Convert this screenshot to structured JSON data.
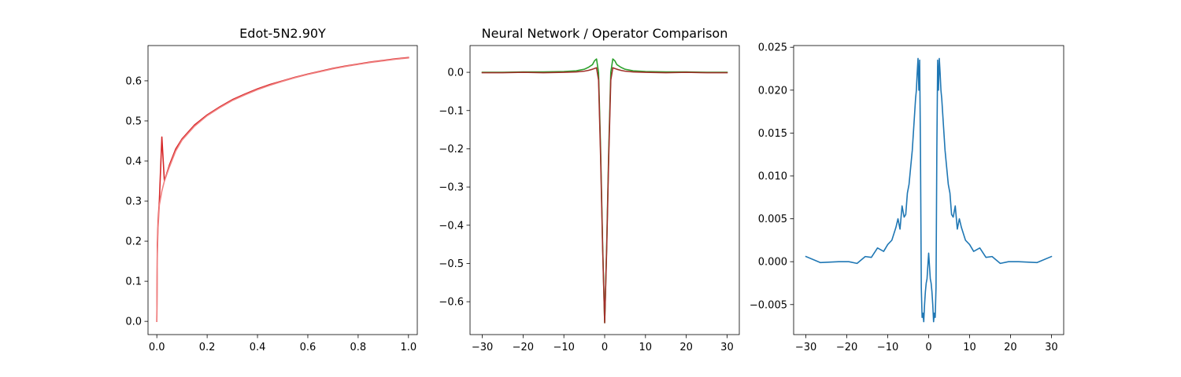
{
  "chart_data": [
    {
      "type": "line",
      "title": "Edot-5N2.90Y",
      "xlabel": "",
      "ylabel": "",
      "xlim": [
        -0.035,
        1.035
      ],
      "ylim": [
        -0.033,
        0.688
      ],
      "xticks": [
        0.0,
        0.2,
        0.4,
        0.6,
        0.8,
        1.0
      ],
      "xtick_labels": [
        "0.0",
        "0.2",
        "0.4",
        "0.6",
        "0.8",
        "1.0"
      ],
      "yticks": [
        0.0,
        0.1,
        0.2,
        0.3,
        0.4,
        0.5,
        0.6
      ],
      "ytick_labels": [
        "0.0",
        "0.1",
        "0.2",
        "0.3",
        "0.4",
        "0.5",
        "0.6"
      ],
      "grid": false,
      "series": [
        {
          "color": "#d62728",
          "x": [
            0.0,
            0.002,
            0.005,
            0.01,
            0.015,
            0.02,
            0.03,
            0.05,
            0.075,
            0.1,
            0.15,
            0.2,
            0.25,
            0.3,
            0.35,
            0.4,
            0.45,
            0.5,
            0.55,
            0.6,
            0.65,
            0.7,
            0.75,
            0.8,
            0.85,
            0.9,
            0.95,
            1.0
          ],
          "y": [
            0.0,
            0.19,
            0.25,
            0.3,
            0.38,
            0.46,
            0.35,
            0.39,
            0.43,
            0.455,
            0.49,
            0.515,
            0.535,
            0.553,
            0.567,
            0.58,
            0.591,
            0.6,
            0.609,
            0.617,
            0.624,
            0.631,
            0.637,
            0.642,
            0.647,
            0.651,
            0.655,
            0.658
          ]
        },
        {
          "color": "#f08080",
          "x": [
            0.0,
            0.002,
            0.005,
            0.01,
            0.02,
            0.03,
            0.05,
            0.075,
            0.1,
            0.15,
            0.2,
            0.25,
            0.3,
            0.35,
            0.4,
            0.45,
            0.5,
            0.55,
            0.6,
            0.65,
            0.7,
            0.75,
            0.8,
            0.85,
            0.9,
            0.95,
            1.0
          ],
          "y": [
            0.0,
            0.17,
            0.235,
            0.29,
            0.325,
            0.35,
            0.385,
            0.425,
            0.452,
            0.487,
            0.513,
            0.533,
            0.551,
            0.565,
            0.578,
            0.589,
            0.599,
            0.608,
            0.616,
            0.623,
            0.63,
            0.636,
            0.641,
            0.646,
            0.65,
            0.654,
            0.657
          ]
        }
      ]
    },
    {
      "type": "line",
      "title": "Neural Network / Operator Comparison",
      "xlabel": "",
      "ylabel": "",
      "xlim": [
        -33,
        33
      ],
      "ylim": [
        -0.686,
        0.07
      ],
      "xticks": [
        -30,
        -20,
        -10,
        0,
        10,
        20,
        30
      ],
      "xtick_labels": [
        "−30",
        "−20",
        "−10",
        "0",
        "10",
        "20",
        "30"
      ],
      "yticks": [
        0.0,
        -0.1,
        -0.2,
        -0.3,
        -0.4,
        -0.5,
        -0.6
      ],
      "ytick_labels": [
        "0.0",
        "−0.1",
        "−0.2",
        "−0.3",
        "−0.4",
        "−0.5",
        "−0.6"
      ],
      "grid": false,
      "series": [
        {
          "color": "#2ca02c",
          "x": [
            -30,
            -25,
            -20,
            -15,
            -10,
            -7,
            -5,
            -4,
            -3,
            -2.5,
            -2,
            -1.5,
            -1,
            -0.5,
            0,
            0.5,
            1,
            1.5,
            2,
            2.5,
            3,
            4,
            5,
            7,
            10,
            15,
            20,
            25,
            30
          ],
          "y": [
            0.0,
            0.0,
            0.001,
            0.001,
            0.002,
            0.004,
            0.008,
            0.013,
            0.02,
            0.03,
            0.035,
            0.0,
            -0.2,
            -0.45,
            -0.655,
            -0.45,
            -0.2,
            0.0,
            0.035,
            0.03,
            0.02,
            0.013,
            0.008,
            0.004,
            0.002,
            0.001,
            0.001,
            0.0,
            0.0
          ]
        },
        {
          "color": "#a0302a",
          "x": [
            -30,
            -25,
            -20,
            -15,
            -10,
            -7,
            -5,
            -4,
            -3,
            -2.5,
            -2,
            -1.5,
            -1,
            -0.5,
            0,
            0.5,
            1,
            1.5,
            2,
            2.5,
            3,
            4,
            5,
            7,
            10,
            15,
            20,
            25,
            30
          ],
          "y": [
            -0.001,
            -0.001,
            0.0,
            -0.001,
            0.0,
            0.001,
            0.003,
            0.005,
            0.008,
            0.01,
            0.012,
            -0.02,
            -0.22,
            -0.46,
            -0.655,
            -0.46,
            -0.22,
            -0.02,
            0.012,
            0.01,
            0.008,
            0.005,
            0.003,
            0.001,
            0.0,
            -0.001,
            0.0,
            -0.001,
            -0.001
          ]
        }
      ]
    },
    {
      "type": "line",
      "title": "",
      "xlabel": "",
      "ylabel": "",
      "xlim": [
        -33,
        33
      ],
      "ylim": [
        -0.0085,
        0.0252
      ],
      "xticks": [
        -30,
        -20,
        -10,
        0,
        10,
        20,
        30
      ],
      "xtick_labels": [
        "−30",
        "−20",
        "−10",
        "0",
        "10",
        "20",
        "30"
      ],
      "yticks": [
        -0.005,
        0.0,
        0.005,
        0.01,
        0.015,
        0.02,
        0.025
      ],
      "ytick_labels": [
        "−0.005",
        "0.000",
        "0.005",
        "0.010",
        "0.015",
        "0.020",
        "0.025"
      ],
      "grid": false,
      "series": [
        {
          "color": "#1f77b4",
          "x": [
            -30,
            -26.5,
            -22,
            -19.5,
            -17.5,
            -15.5,
            -14,
            -12.5,
            -11,
            -10,
            -9,
            -8,
            -7.5,
            -7,
            -6.5,
            -6,
            -5.6,
            -5.2,
            -4.8,
            -4.4,
            -4,
            -3.6,
            -3.2,
            -3,
            -2.8,
            -2.6,
            -2.4,
            -2.2,
            -2,
            -1.8,
            -1.6,
            -1.4,
            -1.2,
            -1,
            -0.8,
            -0.6,
            -0.4,
            -0.2,
            0,
            0.2,
            0.4,
            0.6,
            0.8,
            1,
            1.2,
            1.4,
            1.6,
            1.8,
            2,
            2.2,
            2.4,
            2.6,
            2.8,
            3,
            3.2,
            3.6,
            4,
            4.4,
            4.8,
            5.2,
            5.6,
            6,
            6.5,
            7,
            7.5,
            8,
            9,
            10,
            11,
            12.5,
            14,
            15.5,
            17.5,
            19.5,
            22,
            26.5,
            30
          ],
          "y": [
            0.0006,
            -0.0001,
            0.0,
            0.0,
            -0.0002,
            0.0006,
            0.0005,
            0.0016,
            0.0012,
            0.002,
            0.0025,
            0.004,
            0.005,
            0.0038,
            0.0065,
            0.0052,
            0.0055,
            0.008,
            0.009,
            0.011,
            0.013,
            0.016,
            0.019,
            0.02,
            0.022,
            0.0237,
            0.02,
            0.0235,
            0.013,
            -0.003,
            -0.0065,
            -0.006,
            -0.007,
            -0.005,
            -0.0035,
            -0.0025,
            -0.002,
            -0.0005,
            0.001,
            -0.0005,
            -0.002,
            -0.0025,
            -0.0035,
            -0.005,
            -0.007,
            -0.006,
            -0.0065,
            -0.003,
            0.013,
            0.0235,
            0.02,
            0.0237,
            0.022,
            0.02,
            0.019,
            0.016,
            0.013,
            0.011,
            0.009,
            0.008,
            0.0055,
            0.0052,
            0.0065,
            0.0038,
            0.005,
            0.004,
            0.0025,
            0.002,
            0.0012,
            0.0016,
            0.0005,
            0.0006,
            -0.0002,
            0.0,
            0.0,
            -0.0001,
            0.0006
          ]
        }
      ]
    }
  ]
}
